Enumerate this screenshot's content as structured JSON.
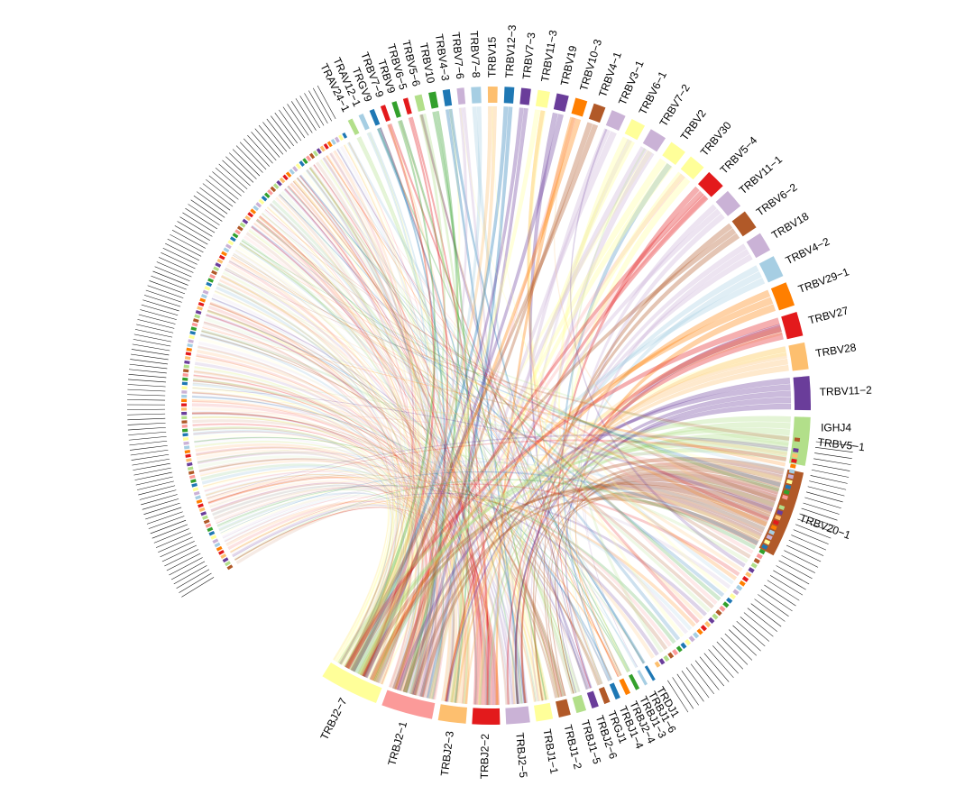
{
  "chart_data": {
    "type": "chord",
    "title": "",
    "palette": [
      "#b15928",
      "#b2df8a",
      "#6a3d9a",
      "#fdbf6f",
      "#e31a1c",
      "#ff7f00",
      "#a6cee3",
      "#cab2d6",
      "#ffff99",
      "#1f78b4",
      "#33a02c",
      "#fb9a99"
    ],
    "v_segments": [
      {
        "label": "TRBV20−1",
        "value": 36,
        "color": "#b15928"
      },
      {
        "label": "TRBV5−1",
        "value": 20,
        "color": "#b2df8a"
      },
      {
        "label": "TRBV11−2",
        "value": 14,
        "color": "#6a3d9a"
      },
      {
        "label": "TRBV28",
        "value": 11,
        "color": "#fdbf6f"
      },
      {
        "label": "TRBV27",
        "value": 10,
        "color": "#e31a1c"
      },
      {
        "label": "TRBV29−1",
        "value": 10,
        "color": "#ff7f00"
      },
      {
        "label": "TRBV4−2",
        "value": 9,
        "color": "#a6cee3"
      },
      {
        "label": "TRBV18",
        "value": 8,
        "color": "#cab2d6"
      },
      {
        "label": "TRBV6−2",
        "value": 8,
        "color": "#b15928"
      },
      {
        "label": "TRBV11−1",
        "value": 8,
        "color": "#cab2d6"
      },
      {
        "label": "TRBV5−4",
        "value": 8,
        "color": "#e31a1c"
      },
      {
        "label": "TRBV30",
        "value": 7,
        "color": "#ffff99"
      },
      {
        "label": "TRBV2",
        "value": 7,
        "color": "#ffff99"
      },
      {
        "label": "TRBV7−2",
        "value": 7,
        "color": "#cab2d6"
      },
      {
        "label": "TRBV6−1",
        "value": 6,
        "color": "#ffff99"
      },
      {
        "label": "TRBV3−1",
        "value": 6,
        "color": "#cab2d6"
      },
      {
        "label": "TRBV4−1",
        "value": 5,
        "color": "#b15928"
      },
      {
        "label": "TRBV10−3",
        "value": 5,
        "color": "#ff7f00"
      },
      {
        "label": "TRBV19",
        "value": 5,
        "color": "#6a3d9a"
      },
      {
        "label": "TRBV11−3",
        "value": 5,
        "color": "#ffff99"
      },
      {
        "label": "TRBV7−3",
        "value": 4,
        "color": "#6a3d9a"
      },
      {
        "label": "TRBV12−3",
        "value": 4,
        "color": "#1f78b4"
      },
      {
        "label": "TRBV15",
        "value": 4,
        "color": "#fdbf6f"
      },
      {
        "label": "TRBV7−8",
        "value": 4,
        "color": "#a6cee3"
      },
      {
        "label": "TRBV7−6",
        "value": 3,
        "color": "#cab2d6"
      },
      {
        "label": "TRBV4−3",
        "value": 3,
        "color": "#1f78b4"
      },
      {
        "label": "TRBV10",
        "value": 3,
        "color": "#33a02c"
      },
      {
        "label": "TRBV5−6",
        "value": 3,
        "color": "#b2df8a"
      },
      {
        "label": "TRBV6−5",
        "value": 2,
        "color": "#e31a1c"
      },
      {
        "label": "TRBV9",
        "value": 2,
        "color": "#33a02c"
      },
      {
        "label": "TRBV7−9",
        "value": 2,
        "color": "#e31a1c"
      },
      {
        "label": "TRGV9",
        "value": 2,
        "color": "#1f78b4"
      },
      {
        "label": "TRAV12−1",
        "value": 2,
        "color": "#a6cee3"
      },
      {
        "label": "TRAV24−1",
        "value": 2,
        "color": "#b2df8a"
      }
    ],
    "v_minor_segments": 118,
    "j_segments": [
      {
        "label": "TRBJ2−7",
        "value": 60,
        "color": "#ffff99"
      },
      {
        "label": "TRBJ2−1",
        "value": 52,
        "color": "#fb9a99"
      },
      {
        "label": "TRBJ2−3",
        "value": 28,
        "color": "#fdbf6f"
      },
      {
        "label": "TRBJ2−2",
        "value": 28,
        "color": "#e31a1c"
      },
      {
        "label": "TRBJ2−5",
        "value": 24,
        "color": "#cab2d6"
      },
      {
        "label": "TRBJ1−1",
        "value": 17,
        "color": "#ffff99"
      },
      {
        "label": "TRBJ1−2",
        "value": 12,
        "color": "#b15928"
      },
      {
        "label": "TRBJ1−5",
        "value": 10,
        "color": "#b2df8a"
      },
      {
        "label": "TRBJ2−6",
        "value": 7,
        "color": "#6a3d9a"
      },
      {
        "label": "TRGJ1",
        "value": 6,
        "color": "#b15928"
      },
      {
        "label": "TRBJ1−4",
        "value": 5,
        "color": "#1f78b4"
      },
      {
        "label": "TRBJ2−4",
        "value": 5,
        "color": "#ff7f00"
      },
      {
        "label": "TRBJ1−3",
        "value": 4,
        "color": "#33a02c"
      },
      {
        "label": "TRBJ1−6",
        "value": 3,
        "color": "#a6cee3"
      },
      {
        "label": "TRDJ1",
        "value": 3,
        "color": "#1f78b4"
      }
    ],
    "j_minor_segments": 52,
    "j_top_label": "IGHJ4"
  }
}
